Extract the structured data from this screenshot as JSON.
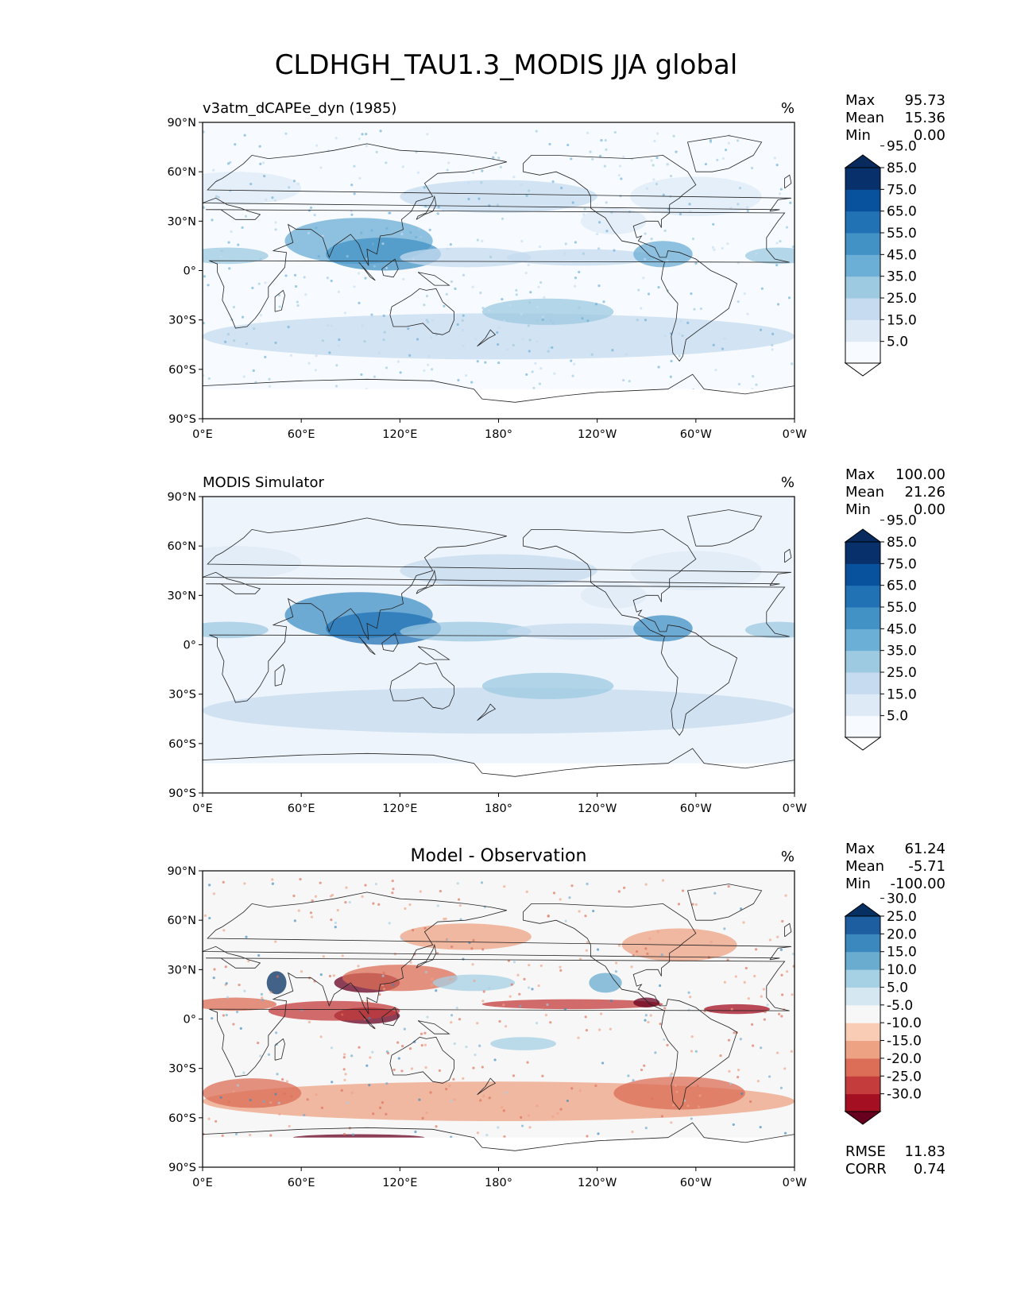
{
  "figure": {
    "title": "CLDHGH_TAU1.3_MODIS JJA global"
  },
  "chart_data": [
    {
      "type": "heatmap",
      "name": "test",
      "title_left": "v3atm_dCAPEe_dyn (1985)",
      "title_center": "",
      "units": "%",
      "stats": [
        {
          "label": "Max",
          "value": "95.73"
        },
        {
          "label": "Mean",
          "value": "15.36"
        },
        {
          "label": "Min",
          "value": "0.00"
        }
      ],
      "bottom_stats": [],
      "x_ticks": [
        "0°E",
        "60°E",
        "120°E",
        "180°",
        "120°W",
        "60°W",
        "0°W"
      ],
      "y_ticks": [
        "90°N",
        "60°N",
        "30°N",
        "0°",
        "30°S",
        "60°S",
        "90°S"
      ],
      "xlim": [
        0,
        360
      ],
      "ylim": [
        -90,
        90
      ],
      "colorbar": {
        "levels": [
          0,
          5,
          15,
          25,
          35,
          45,
          55,
          65,
          75,
          85,
          95,
          100
        ],
        "labels": [
          "5.0",
          "15.0",
          "25.0",
          "35.0",
          "45.0",
          "55.0",
          "65.0",
          "75.0",
          "85.0",
          "95.0"
        ],
        "colors": [
          "#ffffff",
          "#f7fbff",
          "#deebf7",
          "#c6dbef",
          "#9ecae1",
          "#6baed6",
          "#4292c6",
          "#2171b5",
          "#08519c",
          "#08306b",
          "#082a5c"
        ],
        "extend": "both"
      }
    },
    {
      "type": "heatmap",
      "name": "reference",
      "title_left": "MODIS Simulator",
      "title_center": "",
      "units": "%",
      "stats": [
        {
          "label": "Max",
          "value": "100.00"
        },
        {
          "label": "Mean",
          "value": "21.26"
        },
        {
          "label": "Min",
          "value": "0.00"
        }
      ],
      "bottom_stats": [],
      "x_ticks": [
        "0°E",
        "60°E",
        "120°E",
        "180°",
        "120°W",
        "60°W",
        "0°W"
      ],
      "y_ticks": [
        "90°N",
        "60°N",
        "30°N",
        "0°",
        "30°S",
        "60°S",
        "90°S"
      ],
      "xlim": [
        0,
        360
      ],
      "ylim": [
        -90,
        90
      ],
      "colorbar": {
        "levels": [
          0,
          5,
          15,
          25,
          35,
          45,
          55,
          65,
          75,
          85,
          95,
          100
        ],
        "labels": [
          "5.0",
          "15.0",
          "25.0",
          "35.0",
          "45.0",
          "55.0",
          "65.0",
          "75.0",
          "85.0",
          "95.0"
        ],
        "colors": [
          "#ffffff",
          "#f7fbff",
          "#deebf7",
          "#c6dbef",
          "#9ecae1",
          "#6baed6",
          "#4292c6",
          "#2171b5",
          "#08519c",
          "#08306b",
          "#082a5c"
        ],
        "extend": "both"
      }
    },
    {
      "type": "heatmap",
      "name": "difference",
      "title_left": "",
      "title_center": "Model - Observation",
      "units": "%",
      "stats": [
        {
          "label": "Max",
          "value": "61.24"
        },
        {
          "label": "Mean",
          "value": "-5.71"
        },
        {
          "label": "Min",
          "value": "-100.00"
        }
      ],
      "bottom_stats": [
        {
          "label": "RMSE",
          "value": "11.83"
        },
        {
          "label": "CORR",
          "value": "0.74"
        }
      ],
      "x_ticks": [
        "0°E",
        "60°E",
        "120°E",
        "180°",
        "120°W",
        "60°W",
        "0°W"
      ],
      "y_ticks": [
        "90°N",
        "60°N",
        "30°N",
        "0°",
        "30°S",
        "60°S",
        "90°S"
      ],
      "xlim": [
        0,
        360
      ],
      "ylim": [
        -90,
        90
      ],
      "colorbar": {
        "levels": [
          -35,
          -30,
          -25,
          -20,
          -15,
          -10,
          -5,
          5,
          10,
          15,
          20,
          25,
          30,
          35
        ],
        "labels": [
          "-30.0",
          "-25.0",
          "-20.0",
          "-15.0",
          "-10.0",
          "-5.0",
          "5.0",
          "10.0",
          "15.0",
          "20.0",
          "25.0",
          "30.0"
        ],
        "colors": [
          "#67001f",
          "#a50f22",
          "#c43c3c",
          "#dc6e57",
          "#eea284",
          "#f9cdb5",
          "#f7f7f7",
          "#d5e7f1",
          "#a6d0e4",
          "#6aacd0",
          "#3b88be",
          "#1d5ea0",
          "#053061"
        ],
        "extend": "both"
      }
    }
  ]
}
